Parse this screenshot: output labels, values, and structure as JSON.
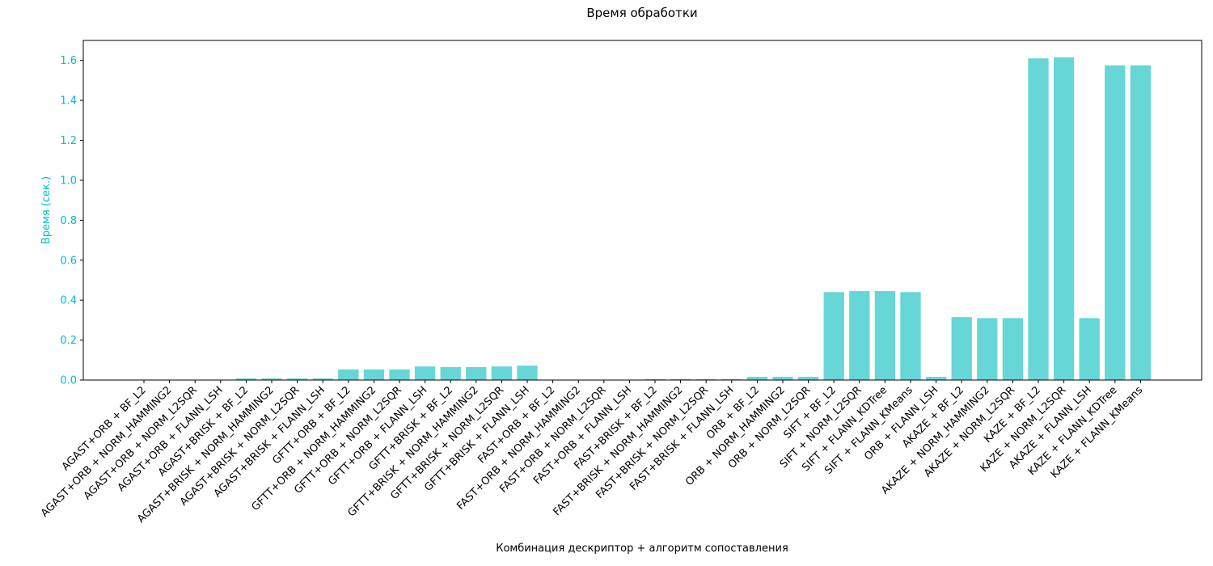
{
  "chart_data": {
    "type": "bar",
    "title": "Время обработки",
    "xlabel": "Комбинация дескриптор + алгоритм сопоставления",
    "ylabel": "Время (сек.)",
    "ylim": [
      0,
      1.7
    ],
    "yticks": [
      "0.0",
      "0.2",
      "0.4",
      "0.6",
      "0.8",
      "1.0",
      "1.2",
      "1.4",
      "1.6"
    ],
    "grid": false,
    "categories": [
      "AGAST+ORB + BF_L2",
      "AGAST+ORB + NORM_HAMMING2",
      "AGAST+ORB + NORM_L2SQR",
      "AGAST+ORB + FLANN_LSH",
      "AGAST+BRISK + BF_L2",
      "AGAST+BRISK + NORM_HAMMING2",
      "AGAST+BRISK + NORM_L2SQR",
      "AGAST+BRISK + FLANN_LSH",
      "GFTT+ORB + BF_L2",
      "GFTT+ORB + NORM_HAMMING2",
      "GFTT+ORB + NORM_L2SQR",
      "GFTT+ORB + FLANN_LSH",
      "GFTT+BRISK + BF_L2",
      "GFTT+BRISK + NORM_HAMMING2",
      "GFTT+BRISK + NORM_L2SQR",
      "GFTT+BRISK + FLANN_LSH",
      "FAST+ORB + BF_L2",
      "FAST+ORB + NORM_HAMMING2",
      "FAST+ORB + NORM_L2SQR",
      "FAST+ORB + FLANN_LSH",
      "FAST+BRISK + BF_L2",
      "FAST+BRISK + NORM_HAMMING2",
      "FAST+BRISK + NORM_L2SQR",
      "FAST+BRISK + FLANN_LSH",
      "ORB + BF_L2",
      "ORB + NORM_HAMMING2",
      "ORB + NORM_L2SQR",
      "SIFT + BF_L2",
      "SIFT + NORM_L2SQR",
      "SIFT + FLANN_KDTree",
      "SIFT + FLANN_KMeans",
      "ORB + FLANN_LSH",
      "AKAZE + BF_L2",
      "AKAZE + NORM_HAMMING2",
      "AKAZE + NORM_L2SQR",
      "KAZE + BF_L2",
      "KAZE + NORM_L2SQR",
      "AKAZE + FLANN_LSH",
      "KAZE + FLANN_KDTree",
      "KAZE + FLANN_KMeans"
    ],
    "values": [
      0.002,
      0.002,
      0.002,
      0.002,
      0.008,
      0.008,
      0.008,
      0.008,
      0.053,
      0.053,
      0.053,
      0.068,
      0.065,
      0.065,
      0.068,
      0.072,
      0.001,
      0.001,
      0.001,
      0.001,
      0.004,
      0.004,
      0.004,
      0.004,
      0.016,
      0.016,
      0.016,
      0.44,
      0.445,
      0.445,
      0.44,
      0.016,
      0.315,
      0.31,
      0.31,
      1.61,
      1.615,
      0.31,
      1.575,
      1.575
    ],
    "colors": {
      "bar": "#66d6d6",
      "ylabel": "#00c0c0",
      "yticks": "#00c0c0",
      "axis": "#000000"
    }
  }
}
